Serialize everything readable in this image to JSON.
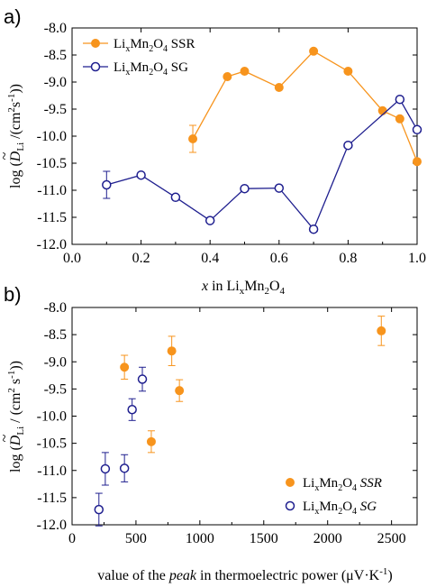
{
  "chart_data": [
    {
      "type": "line",
      "panel_label": "a)",
      "xlabel": "x in LixMn2O4",
      "ylabel": "log (D̃Li /(cm²s⁻¹))",
      "xlim": [
        0.0,
        1.0
      ],
      "ylim": [
        -12.0,
        -8.0
      ],
      "x_ticks": [
        "0.0",
        "0.2",
        "0.4",
        "0.6",
        "0.8",
        "1.0"
      ],
      "y_ticks": [
        "-8.0",
        "-8.5",
        "-9.0",
        "-9.5",
        "-10.0",
        "-10.5",
        "-11.0",
        "-11.5",
        "-12.0"
      ],
      "legend_position": "top-left",
      "series": [
        {
          "name": "LixMn2O4 SSR",
          "color": "#f7941d",
          "marker": "filled-circle",
          "x": [
            0.35,
            0.45,
            0.5,
            0.6,
            0.7,
            0.8,
            0.9,
            0.95,
            1.0
          ],
          "y": [
            -10.05,
            -8.9,
            -8.8,
            -9.1,
            -8.43,
            -8.8,
            -9.53,
            -9.68,
            -10.47
          ],
          "err": [
            0.25,
            0,
            0,
            0,
            0,
            0,
            0,
            0,
            0
          ]
        },
        {
          "name": "LixMn2O4 SG",
          "color": "#1f1f8f",
          "marker": "open-circle",
          "x": [
            0.1,
            0.2,
            0.3,
            0.4,
            0.5,
            0.6,
            0.7,
            0.8,
            0.95,
            1.0
          ],
          "y": [
            -10.9,
            -10.72,
            -11.13,
            -11.56,
            -10.97,
            -10.96,
            -11.72,
            -10.17,
            -9.32,
            -9.88
          ],
          "err": [
            0.25,
            0,
            0,
            0,
            0,
            0,
            0,
            0,
            0,
            0
          ]
        }
      ]
    },
    {
      "type": "scatter",
      "panel_label": "b)",
      "xlabel": "value of the peak in thermoelectric power (μV·K⁻¹)",
      "ylabel": "log (D̃Li / (cm² s⁻¹))",
      "xlim": [
        0,
        2700
      ],
      "ylim": [
        -12.0,
        -8.0
      ],
      "x_ticks": [
        "0",
        "500",
        "1000",
        "1500",
        "2000",
        "2500"
      ],
      "y_ticks": [
        "-8.0",
        "-8.5",
        "-9.0",
        "-9.5",
        "-10.0",
        "-10.5",
        "-11.0",
        "-11.5",
        "-12.0"
      ],
      "legend_position": "bottom-right",
      "series": [
        {
          "name": "LixMn2O4 SSR",
          "color": "#f7941d",
          "marker": "filled-circle",
          "x": [
            410,
            620,
            780,
            840,
            2420
          ],
          "y": [
            -9.1,
            -10.47,
            -8.8,
            -9.53,
            -8.43
          ],
          "err": [
            0.22,
            0.2,
            0.27,
            0.2,
            0.27
          ]
        },
        {
          "name": "LixMn2O4 SG",
          "color": "#1f1f8f",
          "marker": "open-circle",
          "x": [
            210,
            260,
            410,
            470,
            550
          ],
          "y": [
            -11.72,
            -10.97,
            -10.96,
            -9.88,
            -9.32
          ],
          "err": [
            0.3,
            0.3,
            0.25,
            0.2,
            0.22
          ]
        }
      ]
    }
  ]
}
